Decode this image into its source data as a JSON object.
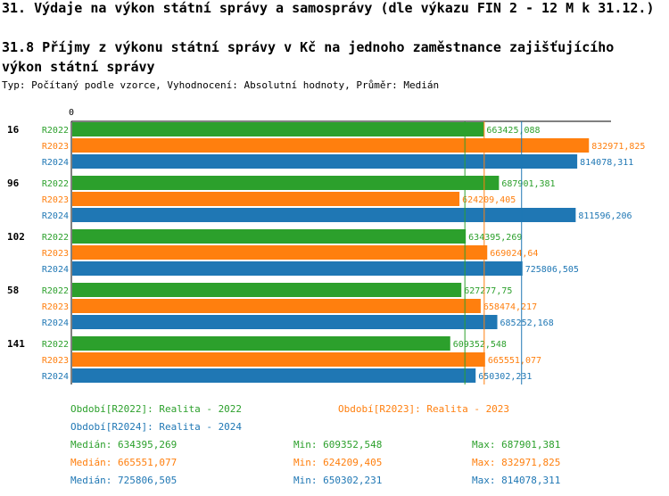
{
  "header": {
    "title": "31. Výdaje na výkon státní správy a samosprávy (dle výkazu FIN 2 - 12 M k 31.12.)",
    "chart_title": "31.8 Příjmy z výkonu státní správy v Kč na jednoho zaměstnance zajišťujícího výkon státní správy",
    "subtitle": "Typ: Počítaný podle vzorce, Vyhodnocení: Absolutní hodnoty, Průměr: Medián"
  },
  "colors": {
    "R2022": "#2ca02c",
    "R2023": "#ff7f0e",
    "R2024": "#1f77b4"
  },
  "chart_data": {
    "type": "bar",
    "orientation": "horizontal",
    "x_tick_labels": [
      "0"
    ],
    "categories": [
      "16",
      "96",
      "102",
      "58",
      "141"
    ],
    "series": [
      {
        "name": "R2022",
        "labels": [
          "663425,088",
          "687901,381",
          "634395,269",
          "627277,75",
          "609352,548"
        ],
        "values": [
          663425.088,
          687901.381,
          634395.269,
          627277.75,
          609352.548
        ]
      },
      {
        "name": "R2023",
        "labels": [
          "832971,825",
          "624209,405",
          "669024,64",
          "658474,217",
          "665551,077"
        ],
        "values": [
          832971.825,
          624209.405,
          669024.64,
          658474.217,
          665551.077
        ]
      },
      {
        "name": "R2024",
        "labels": [
          "814078,311",
          "811596,206",
          "725806,505",
          "685252,168",
          "650302,231"
        ],
        "values": [
          814078.311,
          811596.206,
          725806.505,
          685252.168,
          650302.231
        ]
      }
    ],
    "medians": [
      634395.269,
      665551.077,
      725806.505
    ],
    "xlim": [
      0,
      870000
    ]
  },
  "legend": {
    "items": [
      {
        "key": "R2022",
        "text": "Období[R2022]: Realita - 2022"
      },
      {
        "key": "R2023",
        "text": "Období[R2023]: Realita - 2023"
      },
      {
        "key": "R2024",
        "text": "Období[R2024]: Realita - 2024"
      }
    ],
    "stats": [
      {
        "key": "R2022",
        "median": "Medián: 634395,269",
        "min": "Min: 609352,548",
        "max": "Max: 687901,381"
      },
      {
        "key": "R2023",
        "median": "Medián: 665551,077",
        "min": "Min: 624209,405",
        "max": "Max: 832971,825"
      },
      {
        "key": "R2024",
        "median": "Medián: 725806,505",
        "min": "Min: 650302,231",
        "max": "Max: 814078,311"
      }
    ]
  }
}
